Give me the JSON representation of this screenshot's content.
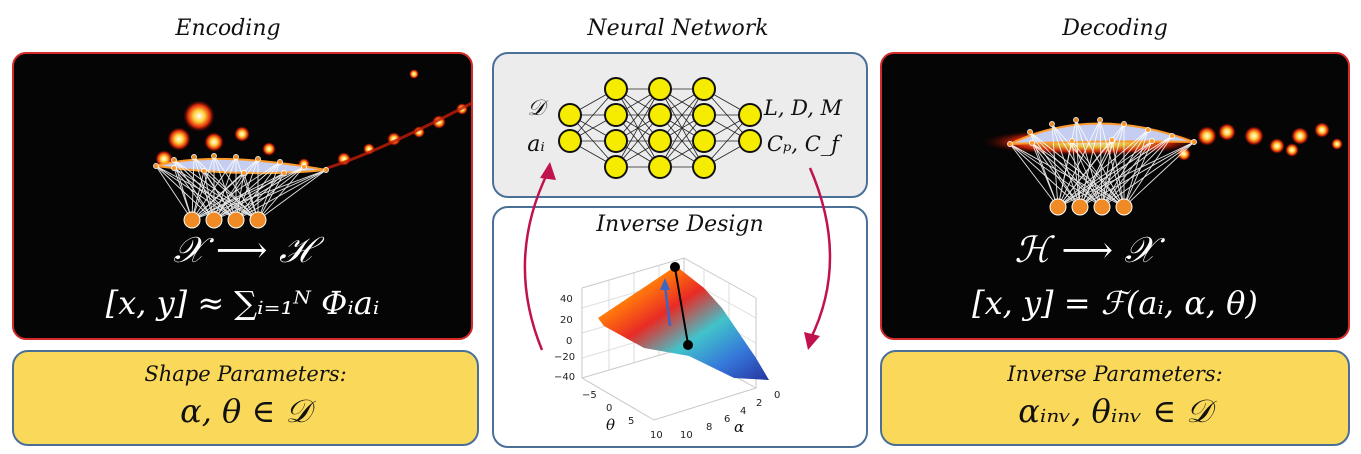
{
  "titles": {
    "encoding": "Encoding",
    "neural_network": "Neural Network",
    "decoding": "Decoding",
    "inverse_design": "Inverse Design"
  },
  "encoding": {
    "map": "𝒳 ⟶ ℋ",
    "equation": "[x, y] ≈ ∑ᵢ₌₁ᴺ Φᵢaᵢ"
  },
  "shape_params": {
    "label": "Shape Parameters:",
    "value": "α, θ ∈ 𝒟"
  },
  "network": {
    "inputs": [
      "𝒟",
      "aᵢ"
    ],
    "outputs": [
      "L, D, M",
      "Cₚ, C_f"
    ]
  },
  "decoding": {
    "map": "ℋ ⟶ 𝒳",
    "equation": "[x, y] = ℱ(aᵢ, α, θ)"
  },
  "inverse_params": {
    "label": "Inverse Parameters:",
    "value": "αᵢₙᵥ, θᵢₙᵥ ∈ 𝒟"
  },
  "surface_plot": {
    "z_ticks": [
      "40",
      "20",
      "0",
      "−20",
      "−40"
    ],
    "theta_ticks": [
      "−5",
      "0",
      "5",
      "10"
    ],
    "alpha_ticks": [
      "10",
      "8",
      "6",
      "4",
      "2",
      "0"
    ],
    "theta_label": "θ",
    "alpha_label": "α"
  },
  "colors": {
    "red_border": "#d42a2a",
    "blue_border": "#4a7098",
    "yellow_fill": "#f9d85a",
    "neuron_fill": "#f5ec00",
    "latent_fill": "#f08a24",
    "arrow": "#c0124f"
  }
}
